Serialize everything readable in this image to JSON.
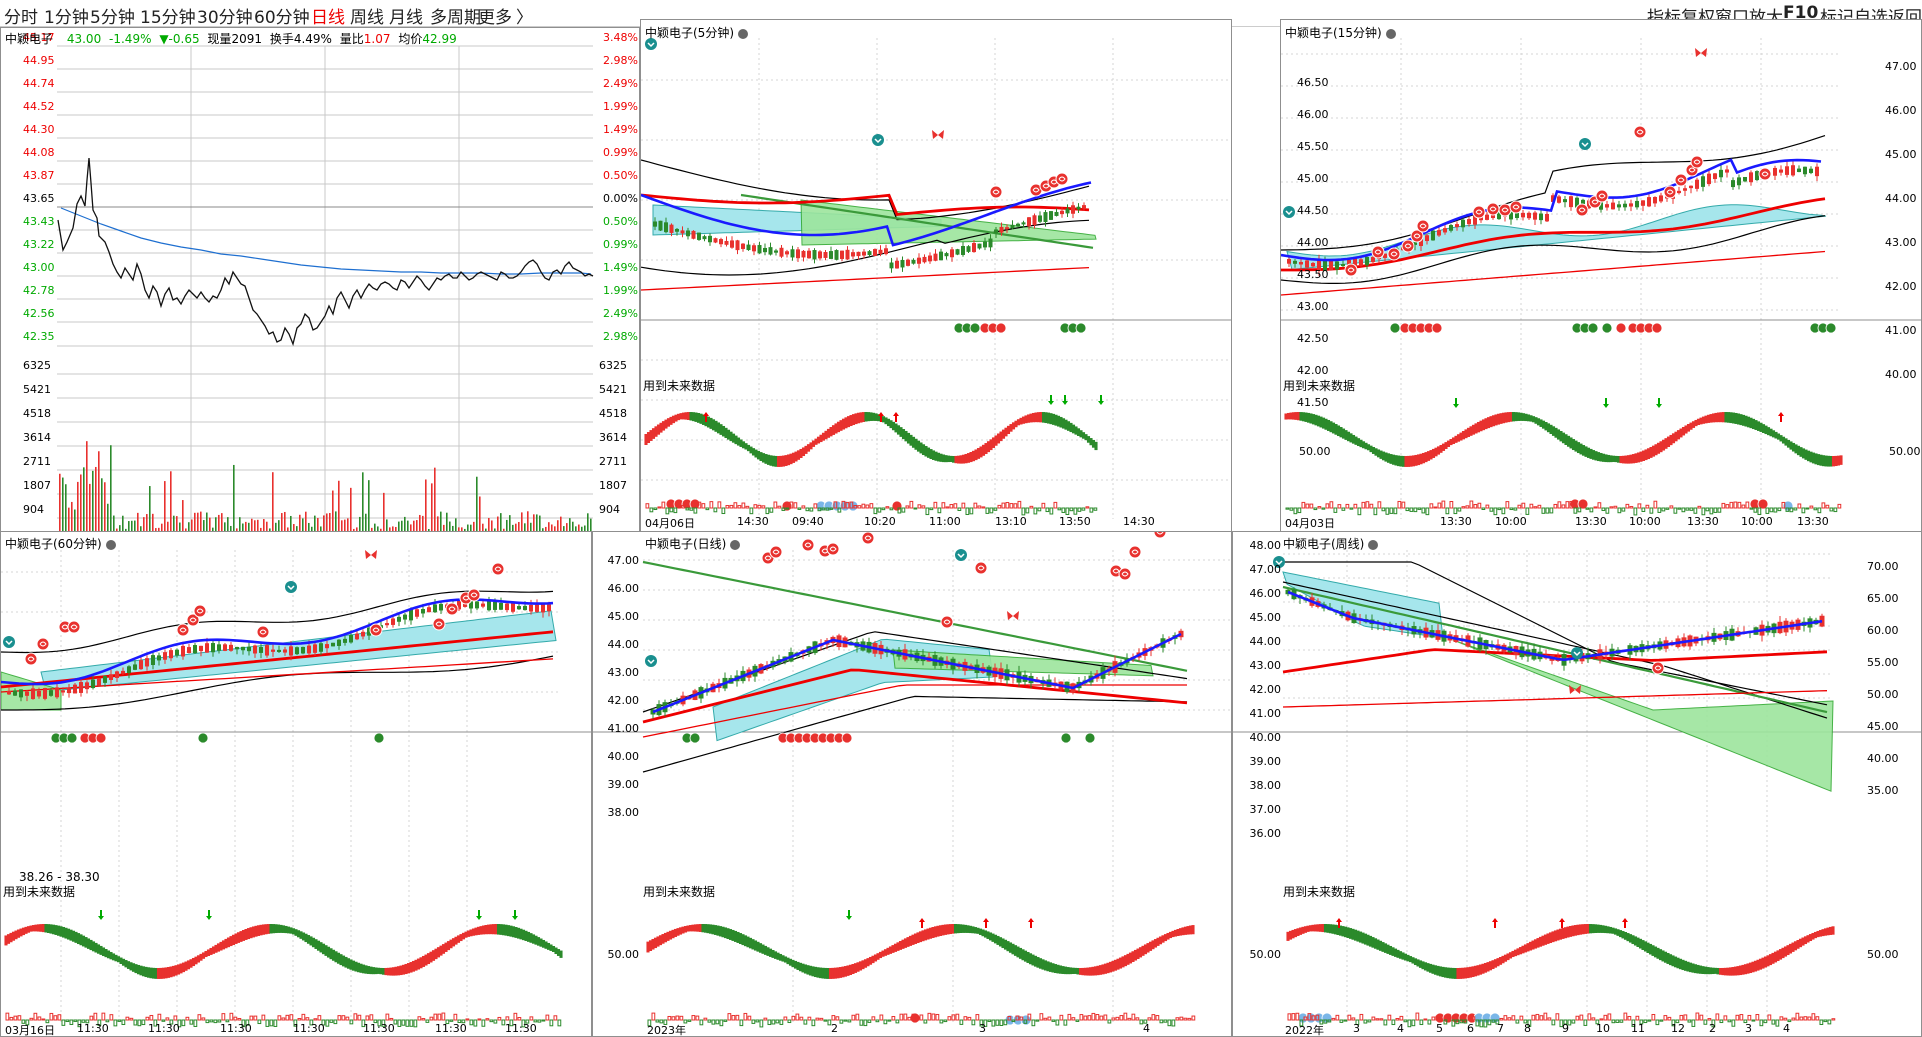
{
  "toolbar": {
    "periods": [
      "分时",
      "1分钟",
      "5分钟",
      "15分钟",
      "30分钟",
      "60分钟",
      "日线",
      "周线",
      "月线",
      "多周期",
      "更多"
    ],
    "active_period": "日线",
    "chevron": "〉",
    "tools": [
      "指标",
      "复权",
      "窗口",
      "放大",
      "F10",
      "标记",
      "自选",
      "返回"
    ]
  },
  "intraday": {
    "stock_name": "中颖电子",
    "price": "43.00",
    "change_pct": "-1.49%",
    "change": "▼-0.65",
    "volume_label": "现量",
    "volume": "2091",
    "turnover_label": "换手",
    "turnover": "4.49%",
    "ratio_label": "量比",
    "ratio": "1.07",
    "avg_label": "均价",
    "avg": "42.99",
    "price_ticks": [
      "45.17",
      "44.95",
      "44.74",
      "44.52",
      "44.30",
      "44.08",
      "43.87",
      "43.65",
      "43.43",
      "43.22",
      "43.00",
      "42.78",
      "42.56",
      "42.35"
    ],
    "pct_ticks": [
      "3.48%",
      "2.98%",
      "2.49%",
      "1.99%",
      "1.49%",
      "0.99%",
      "0.50%",
      "0.00%",
      "0.50%",
      "0.99%",
      "1.49%",
      "1.99%",
      "2.49%",
      "2.98%"
    ],
    "vol_ticks": [
      "6325",
      "5421",
      "4518",
      "3614",
      "2711",
      "1807",
      "904"
    ]
  },
  "panel_5min": {
    "title": "中颖电子(5分钟)",
    "future_note": "用到未来数据",
    "x_labels": [
      "04月06日",
      "14:30",
      "09:40",
      "10:20",
      "11:00",
      "13:10",
      "13:50",
      "14:30"
    ]
  },
  "panel_15min": {
    "title": "中颖电子(15分钟)",
    "left_ticks": [
      "46.50",
      "46.00",
      "45.50",
      "45.00",
      "44.50",
      "44.00",
      "43.50",
      "43.00",
      "42.50",
      "42.00",
      "41.50"
    ],
    "right_ticks": [
      "47.00",
      "46.00",
      "45.00",
      "44.00",
      "43.00",
      "42.00",
      "41.00",
      "40.00"
    ],
    "future_note": "用到未来数据",
    "osc_left": "50.00",
    "osc_right": "50.00",
    "x_labels": [
      "04月03日",
      "13:30",
      "10:00",
      "13:30",
      "10:00",
      "13:30",
      "10:00",
      "13:30"
    ]
  },
  "panel_60min": {
    "title": "中颖电子(60分钟)",
    "range_note": "38.26 - 38.30",
    "future_note": "用到未来数据",
    "x_labels": [
      "03月16日",
      "11:30",
      "11:30",
      "11:30",
      "11:30",
      "11:30",
      "11:30",
      "11:30"
    ]
  },
  "panel_day": {
    "title": "中颖电子(日线)",
    "ticks": [
      "47.00",
      "46.00",
      "45.00",
      "44.00",
      "43.00",
      "42.00",
      "41.00",
      "40.00",
      "39.00",
      "38.00"
    ],
    "future_note": "用到未来数据",
    "osc_tick": "50.00",
    "x_labels": [
      "2023年",
      "2",
      "3",
      "4"
    ]
  },
  "panel_week": {
    "title": "中颖电子(周线)",
    "left_ticks": [
      "48.00",
      "47.00",
      "46.00",
      "45.00",
      "44.00",
      "43.00",
      "42.00",
      "41.00",
      "40.00",
      "39.00",
      "38.00",
      "37.00",
      "36.00"
    ],
    "right_ticks": [
      "70.00",
      "65.00",
      "60.00",
      "55.00",
      "50.00",
      "45.00",
      "40.00",
      "35.00"
    ],
    "future_note": "用到未来数据",
    "osc_left": "50.00",
    "osc_right": "50.00",
    "x_labels": [
      "2022年",
      "3",
      "4",
      "5",
      "6",
      "7",
      "8",
      "9",
      "10",
      "11",
      "12",
      "2",
      "3",
      "4"
    ]
  },
  "colors": {
    "up": "#e8312e",
    "down": "#2b8a2b",
    "ma_blue": "#1a1aff",
    "band_cyan": "#a6e6ec",
    "band_green": "#9de59d",
    "grid": "#c8c8c8"
  }
}
